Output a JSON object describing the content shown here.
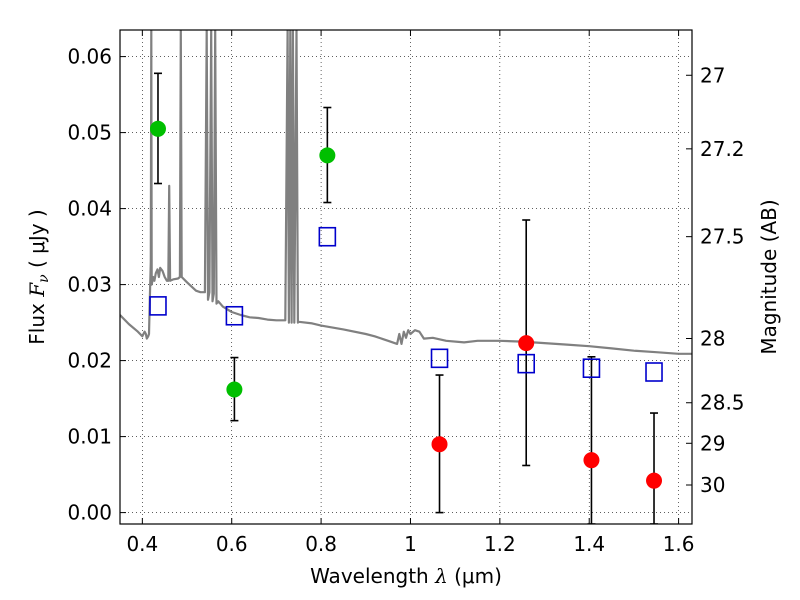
{
  "chart_data": {
    "type": "scatter",
    "xlabel_prefix": "Wavelength",
    "xlabel_symbol": "λ",
    "xlabel_unit": "(μm)",
    "ylabel_prefix": "Flux",
    "ylabel_symbol": "F",
    "ylabel_subscript": "ν",
    "ylabel_unit": "( μJy )",
    "y2label": "Magnitude (AB)",
    "xlim": [
      0.35,
      1.63
    ],
    "ylim": [
      -0.0015,
      0.0635
    ],
    "grid": true,
    "x_ticks": [
      {
        "v": 0.4,
        "label": "0.4"
      },
      {
        "v": 0.6,
        "label": "0.6"
      },
      {
        "v": 0.8,
        "label": "0.8"
      },
      {
        "v": 1.0,
        "label": "1"
      },
      {
        "v": 1.2,
        "label": "1.2"
      },
      {
        "v": 1.4,
        "label": "1.4"
      },
      {
        "v": 1.6,
        "label": "1.6"
      }
    ],
    "y_ticks": [
      {
        "v": 0.0,
        "label": "0.00"
      },
      {
        "v": 0.01,
        "label": "0.01"
      },
      {
        "v": 0.02,
        "label": "0.02"
      },
      {
        "v": 0.03,
        "label": "0.03"
      },
      {
        "v": 0.04,
        "label": "0.04"
      },
      {
        "v": 0.05,
        "label": "0.05"
      },
      {
        "v": 0.06,
        "label": "0.06"
      }
    ],
    "y2_ticks": [
      {
        "mag": 27,
        "label": "27"
      },
      {
        "mag": 27.2,
        "label": "27.2"
      },
      {
        "mag": 27.5,
        "label": "27.5"
      },
      {
        "mag": 28,
        "label": "28"
      },
      {
        "mag": 28.5,
        "label": "28.5"
      },
      {
        "mag": 29,
        "label": "29"
      },
      {
        "mag": 30,
        "label": "30"
      }
    ],
    "colors": {
      "detected": "#00bf00",
      "upper": "#ff0000",
      "model": "#0000cc",
      "sed": "#808080",
      "errorbar": "#000000"
    },
    "series": [
      {
        "kind": "detected",
        "points": [
          {
            "x": 0.435,
            "y": 0.0505,
            "lo": 0.0433,
            "hi": 0.0578
          },
          {
            "x": 0.606,
            "y": 0.0162,
            "lo": 0.0121,
            "hi": 0.0204
          },
          {
            "x": 0.814,
            "y": 0.047,
            "lo": 0.0408,
            "hi": 0.0533
          }
        ]
      },
      {
        "kind": "upper",
        "points": [
          {
            "x": 1.065,
            "y": 0.009,
            "lo": 0.0,
            "hi": 0.0181
          },
          {
            "x": 1.259,
            "y": 0.0223,
            "lo": 0.0062,
            "hi": 0.0385
          },
          {
            "x": 1.405,
            "y": 0.0069,
            "lo": -0.0015,
            "hi": 0.0205
          },
          {
            "x": 1.545,
            "y": 0.0042,
            "lo": -0.0015,
            "hi": 0.0131
          }
        ]
      },
      {
        "kind": "model",
        "points": [
          {
            "x": 0.435,
            "y": 0.0272
          },
          {
            "x": 0.606,
            "y": 0.0259
          },
          {
            "x": 0.814,
            "y": 0.0363
          },
          {
            "x": 1.065,
            "y": 0.0203
          },
          {
            "x": 1.259,
            "y": 0.0196
          },
          {
            "x": 1.405,
            "y": 0.019
          },
          {
            "x": 1.545,
            "y": 0.0185
          }
        ]
      }
    ],
    "sed_curve": [
      [
        0.35,
        0.026
      ],
      [
        0.37,
        0.0248
      ],
      [
        0.39,
        0.0238
      ],
      [
        0.4,
        0.0232
      ],
      [
        0.405,
        0.0238
      ],
      [
        0.408,
        0.0235
      ],
      [
        0.41,
        0.0229
      ],
      [
        0.413,
        0.0232
      ],
      [
        0.415,
        0.0235
      ],
      [
        0.417,
        0.0285
      ],
      [
        0.419,
        0.033
      ],
      [
        0.42,
        0.0635
      ],
      [
        0.421,
        0.03
      ],
      [
        0.424,
        0.031
      ],
      [
        0.427,
        0.0305
      ],
      [
        0.43,
        0.0315
      ],
      [
        0.434,
        0.032
      ],
      [
        0.437,
        0.031
      ],
      [
        0.44,
        0.0322
      ],
      [
        0.445,
        0.0318
      ],
      [
        0.45,
        0.031
      ],
      [
        0.455,
        0.0305
      ],
      [
        0.458,
        0.0305
      ],
      [
        0.46,
        0.043
      ],
      [
        0.462,
        0.0305
      ],
      [
        0.47,
        0.0307
      ],
      [
        0.48,
        0.0308
      ],
      [
        0.484,
        0.031
      ],
      [
        0.486,
        0.0635
      ],
      [
        0.488,
        0.031
      ],
      [
        0.5,
        0.0303
      ],
      [
        0.52,
        0.0292
      ],
      [
        0.53,
        0.029
      ],
      [
        0.54,
        0.029
      ],
      [
        0.544,
        0.0635
      ],
      [
        0.547,
        0.028
      ],
      [
        0.55,
        0.029
      ],
      [
        0.554,
        0.0635
      ],
      [
        0.557,
        0.0278
      ],
      [
        0.56,
        0.0288
      ],
      [
        0.563,
        0.0635
      ],
      [
        0.566,
        0.0275
      ],
      [
        0.57,
        0.0278
      ],
      [
        0.58,
        0.0271
      ],
      [
        0.6,
        0.0264
      ],
      [
        0.62,
        0.026
      ],
      [
        0.64,
        0.0257
      ],
      [
        0.66,
        0.0256
      ],
      [
        0.68,
        0.0254
      ],
      [
        0.7,
        0.0253
      ],
      [
        0.72,
        0.0253
      ],
      [
        0.725,
        0.0635
      ],
      [
        0.728,
        0.025
      ],
      [
        0.731,
        0.0635
      ],
      [
        0.734,
        0.025
      ],
      [
        0.737,
        0.0635
      ],
      [
        0.74,
        0.025
      ],
      [
        0.745,
        0.0635
      ],
      [
        0.748,
        0.025
      ],
      [
        0.75,
        0.0251
      ],
      [
        0.78,
        0.0249
      ],
      [
        0.8,
        0.0246
      ],
      [
        0.85,
        0.0241
      ],
      [
        0.9,
        0.0235
      ],
      [
        0.92,
        0.0232
      ],
      [
        0.95,
        0.0226
      ],
      [
        0.97,
        0.0222
      ],
      [
        0.975,
        0.0235
      ],
      [
        0.98,
        0.0222
      ],
      [
        0.985,
        0.0238
      ],
      [
        0.99,
        0.023
      ],
      [
        0.995,
        0.024
      ],
      [
        1.0,
        0.0235
      ],
      [
        1.01,
        0.024
      ],
      [
        1.02,
        0.0238
      ],
      [
        1.03,
        0.0229
      ],
      [
        1.05,
        0.023
      ],
      [
        1.08,
        0.0226
      ],
      [
        1.12,
        0.0224
      ],
      [
        1.15,
        0.0226
      ],
      [
        1.2,
        0.0226
      ],
      [
        1.25,
        0.0225
      ],
      [
        1.3,
        0.0223
      ],
      [
        1.35,
        0.0221
      ],
      [
        1.4,
        0.0219
      ],
      [
        1.45,
        0.0216
      ],
      [
        1.5,
        0.0213
      ],
      [
        1.55,
        0.0211
      ],
      [
        1.6,
        0.0209
      ],
      [
        1.63,
        0.0209
      ]
    ]
  }
}
